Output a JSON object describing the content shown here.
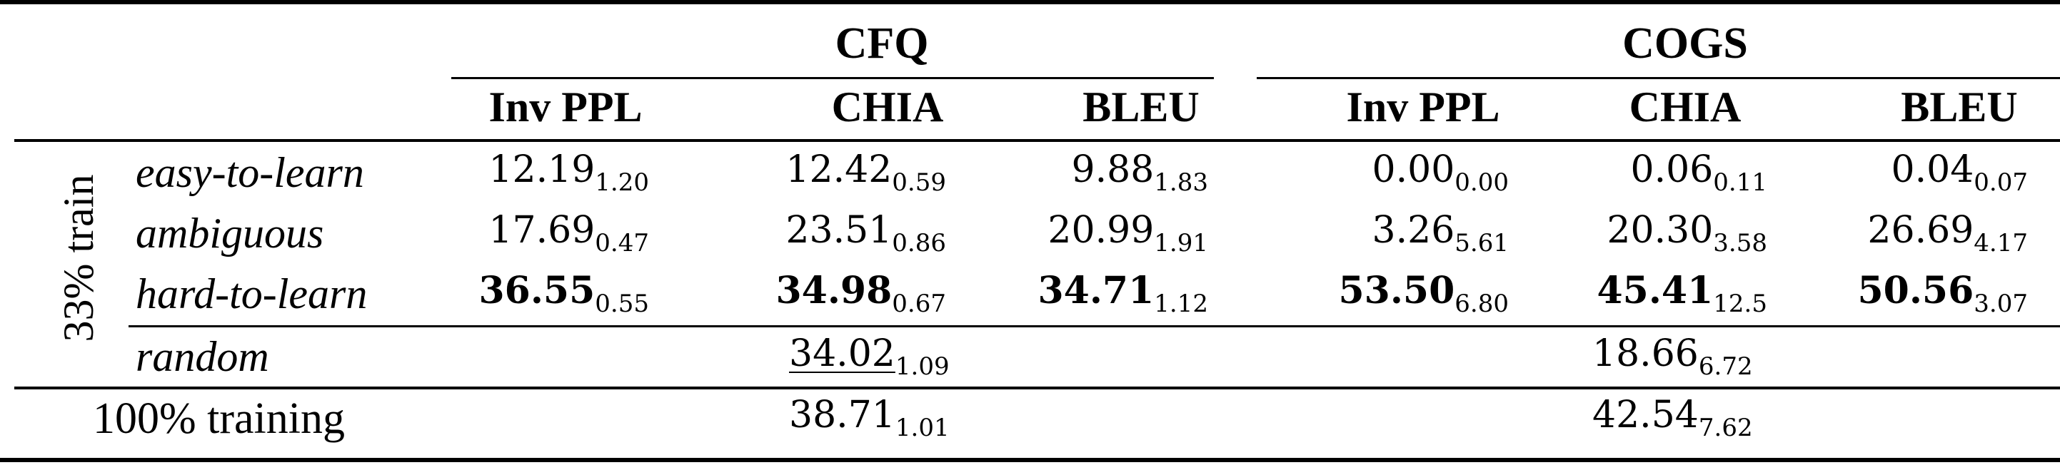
{
  "table": {
    "groups": [
      "CFQ",
      "COGS"
    ],
    "columns": [
      "Inv PPL",
      "CHIA",
      "BLEU",
      "Inv PPL",
      "CHIA",
      "BLEU"
    ],
    "row_group_label": "33% train",
    "rows": [
      {
        "label": "easy-to-learn",
        "cells": [
          {
            "v": "12.19",
            "s": "1.20"
          },
          {
            "v": "12.42",
            "s": "0.59"
          },
          {
            "v": "9.88",
            "s": "1.83"
          },
          {
            "v": "0.00",
            "s": "0.00"
          },
          {
            "v": "0.06",
            "s": "0.11"
          },
          {
            "v": "0.04",
            "s": "0.07"
          }
        ]
      },
      {
        "label": "ambiguous",
        "cells": [
          {
            "v": "17.69",
            "s": "0.47"
          },
          {
            "v": "23.51",
            "s": "0.86"
          },
          {
            "v": "20.99",
            "s": "1.91"
          },
          {
            "v": "3.26",
            "s": "5.61"
          },
          {
            "v": "20.30",
            "s": "3.58"
          },
          {
            "v": "26.69",
            "s": "4.17"
          }
        ]
      },
      {
        "label": "hard-to-learn",
        "cells": [
          {
            "v": "36.55",
            "s": "0.55"
          },
          {
            "v": "34.98",
            "s": "0.67"
          },
          {
            "v": "34.71",
            "s": "1.12"
          },
          {
            "v": "53.50",
            "s": "6.80"
          },
          {
            "v": "45.41",
            "s": "12.5"
          },
          {
            "v": "50.56",
            "s": "3.07"
          }
        ]
      },
      {
        "label": "random",
        "cfq": {
          "v": "34.02",
          "s": "1.09"
        },
        "cogs": {
          "v": "18.66",
          "s": "6.72"
        }
      }
    ],
    "full": {
      "label": "100% training",
      "cfq": {
        "v": "38.71",
        "s": "1.01"
      },
      "cogs": {
        "v": "42.54",
        "s": "7.62"
      }
    }
  }
}
